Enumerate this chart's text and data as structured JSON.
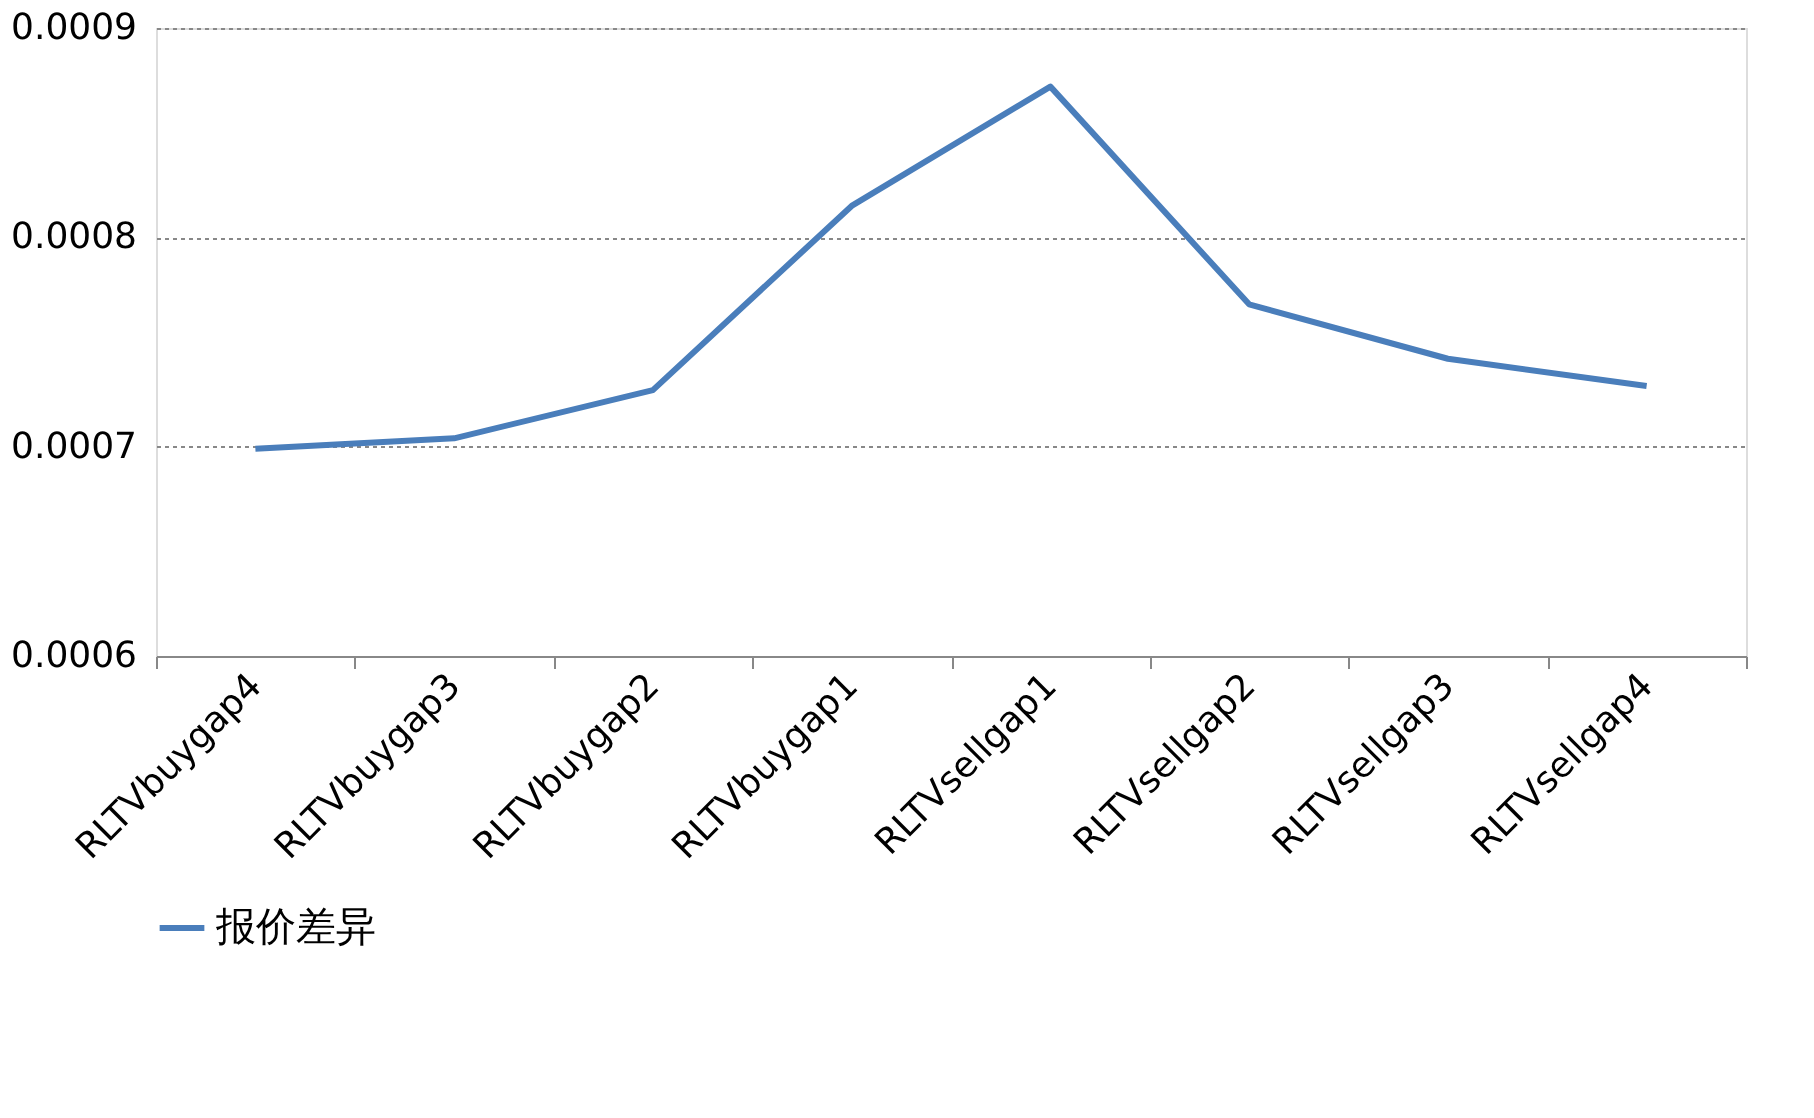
{
  "chart_data": {
    "type": "line",
    "categories": [
      "RLTVbuygap4",
      "RLTVbuygap3",
      "RLTVbuygap2",
      "RLTVbuygap1",
      "RLTVsellgap1",
      "RLTVsellgap2",
      "RLTVsellgap3",
      "RLTVsellgap4"
    ],
    "series": [
      {
        "name": "报价差异",
        "color": "#4a7ebb",
        "values": [
          0.000699,
          0.000704,
          0.000727,
          0.000815,
          0.000872,
          0.000768,
          0.000742,
          0.000729
        ]
      }
    ],
    "ylim": [
      0.0006,
      0.0009
    ],
    "yticks": [
      0.0006,
      0.0007,
      0.0008,
      0.0009
    ],
    "grid": "y",
    "legend": "bottom",
    "marker": "none",
    "line_style": "solid"
  }
}
